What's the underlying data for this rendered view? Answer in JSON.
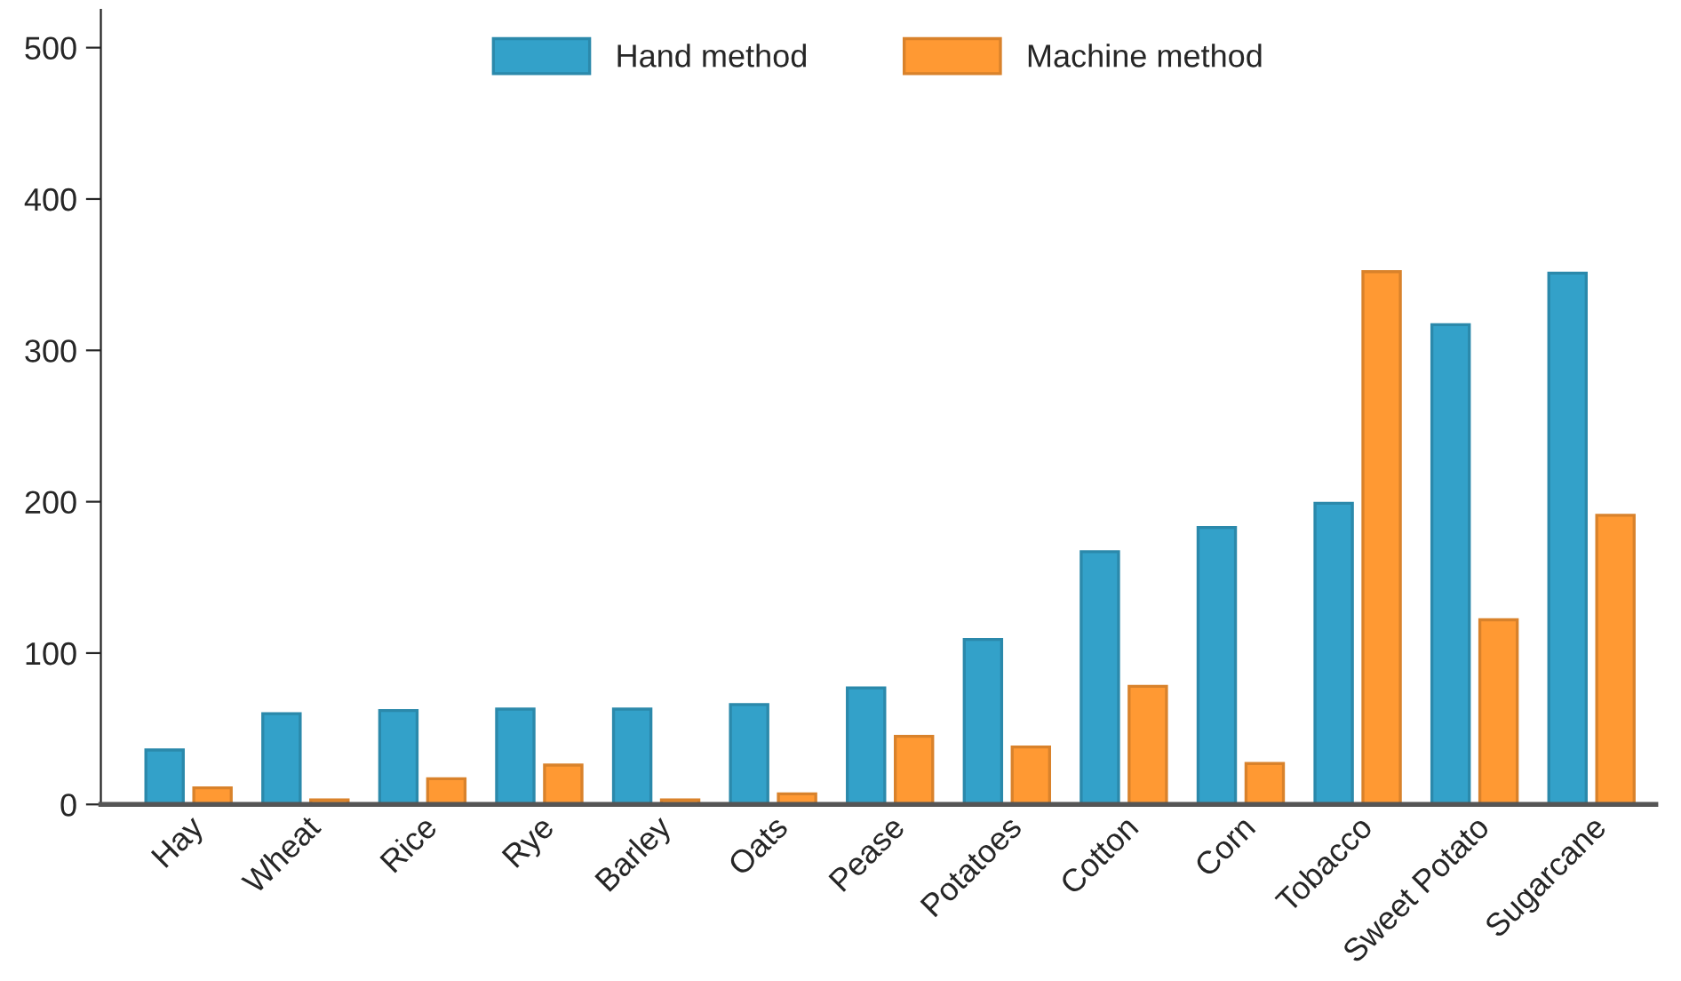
{
  "chart_data": {
    "type": "bar",
    "categories": [
      "Hay",
      "Wheat",
      "Rice",
      "Rye",
      "Barley",
      "Oats",
      "Pease",
      "Potatoes",
      "Cotton",
      "Corn",
      "Tobacco",
      "Sweet Potato",
      "Sugarcane"
    ],
    "series": [
      {
        "name": "Hand method",
        "color": "#33a1c9",
        "values": [
          36,
          60,
          62,
          63,
          63,
          66,
          77,
          109,
          167,
          183,
          199,
          317,
          351
        ]
      },
      {
        "name": "Machine method",
        "color": "#ff9933",
        "values": [
          11,
          3,
          17,
          26,
          3,
          7,
          45,
          38,
          78,
          27,
          352,
          122,
          191
        ]
      }
    ],
    "ylim": [
      0,
      525
    ],
    "yticks": [
      0,
      100,
      200,
      300,
      400,
      500
    ],
    "grid": false,
    "legend": "top"
  }
}
